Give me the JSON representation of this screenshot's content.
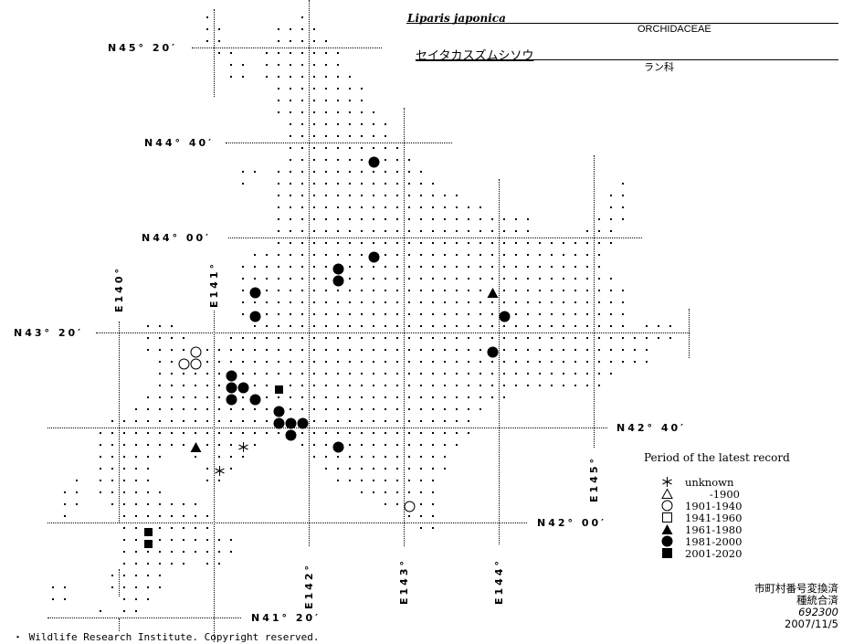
{
  "header": {
    "scientific_name": "Liparis japonica",
    "family_en": "ORCHIDACEAE",
    "japanese_name": "セイタカスズムシソウ",
    "family_ja": "ラン科"
  },
  "graticule": {
    "latitudes": [
      "N45° 20′",
      "N44° 40′",
      "N44° 00′",
      "N43° 20′",
      "N42° 40′",
      "N42° 00′",
      "N41° 20′"
    ],
    "longitudes": [
      "E140°",
      "E141°",
      "E142°",
      "E143°",
      "E144°",
      "E145°"
    ]
  },
  "legend": {
    "title": "Period of the latest record",
    "items": [
      {
        "symbol": "asterisk",
        "label": "unknown"
      },
      {
        "symbol": "open-triangle",
        "label": "-1900"
      },
      {
        "symbol": "open-circle",
        "label": "1901-1940"
      },
      {
        "symbol": "open-square",
        "label": "1941-1960"
      },
      {
        "symbol": "filled-triangle",
        "label": "1961-1980"
      },
      {
        "symbol": "filled-circle",
        "label": "1981-2000"
      },
      {
        "symbol": "filled-square",
        "label": "2001-2020"
      }
    ]
  },
  "meta": {
    "line1": "市町村番号変換済",
    "line2": "種統合済",
    "code": "692300",
    "date": "2007/11/5"
  },
  "copyright": "・ Wildlife Research Institute. Copyright reserved.",
  "records": [
    {
      "symbol": "filled-circle",
      "lon": 142.6875,
      "lat": 44.5417
    },
    {
      "symbol": "filled-circle",
      "lon": 142.6875,
      "lat": 43.875
    },
    {
      "symbol": "filled-circle",
      "lon": 142.3125,
      "lat": 43.7917
    },
    {
      "symbol": "filled-circle",
      "lon": 142.3125,
      "lat": 43.7083
    },
    {
      "symbol": "filled-circle",
      "lon": 141.4375,
      "lat": 43.625
    },
    {
      "symbol": "filled-circle",
      "lon": 141.4375,
      "lat": 43.4583
    },
    {
      "symbol": "filled-circle",
      "lon": 144.0625,
      "lat": 43.4583
    },
    {
      "symbol": "filled-circle",
      "lon": 143.9375,
      "lat": 43.2083
    },
    {
      "symbol": "filled-circle",
      "lon": 141.1875,
      "lat": 43.0417
    },
    {
      "symbol": "filled-circle",
      "lon": 141.1875,
      "lat": 42.9583
    },
    {
      "symbol": "filled-circle",
      "lon": 141.3125,
      "lat": 42.9583
    },
    {
      "symbol": "filled-circle",
      "lon": 141.1875,
      "lat": 42.875
    },
    {
      "symbol": "filled-circle",
      "lon": 141.4375,
      "lat": 42.875
    },
    {
      "symbol": "filled-circle",
      "lon": 141.6875,
      "lat": 42.7917
    },
    {
      "symbol": "filled-circle",
      "lon": 141.6875,
      "lat": 42.7083
    },
    {
      "symbol": "filled-circle",
      "lon": 141.8125,
      "lat": 42.7083
    },
    {
      "symbol": "filled-circle",
      "lon": 141.9375,
      "lat": 42.7083
    },
    {
      "symbol": "filled-circle",
      "lon": 141.8125,
      "lat": 42.625
    },
    {
      "symbol": "filled-circle",
      "lon": 142.3125,
      "lat": 42.5417
    },
    {
      "symbol": "filled-triangle",
      "lon": 143.9375,
      "lat": 43.625
    },
    {
      "symbol": "filled-triangle",
      "lon": 140.8125,
      "lat": 42.5417
    },
    {
      "symbol": "open-circle",
      "lon": 140.8125,
      "lat": 43.2083
    },
    {
      "symbol": "open-circle",
      "lon": 140.6875,
      "lat": 43.125
    },
    {
      "symbol": "open-circle",
      "lon": 140.8125,
      "lat": 43.125
    },
    {
      "symbol": "open-circle",
      "lon": 143.0625,
      "lat": 42.125
    },
    {
      "symbol": "filled-square",
      "lon": 141.6875,
      "lat": 42.9583
    },
    {
      "symbol": "filled-square",
      "lon": 140.3125,
      "lat": 41.9583
    },
    {
      "symbol": "filled-square",
      "lon": 140.3125,
      "lat": 41.875
    },
    {
      "symbol": "asterisk",
      "lon": 141.3125,
      "lat": 42.5417
    },
    {
      "symbol": "asterisk",
      "lon": 141.0625,
      "lat": 42.375
    }
  ]
}
